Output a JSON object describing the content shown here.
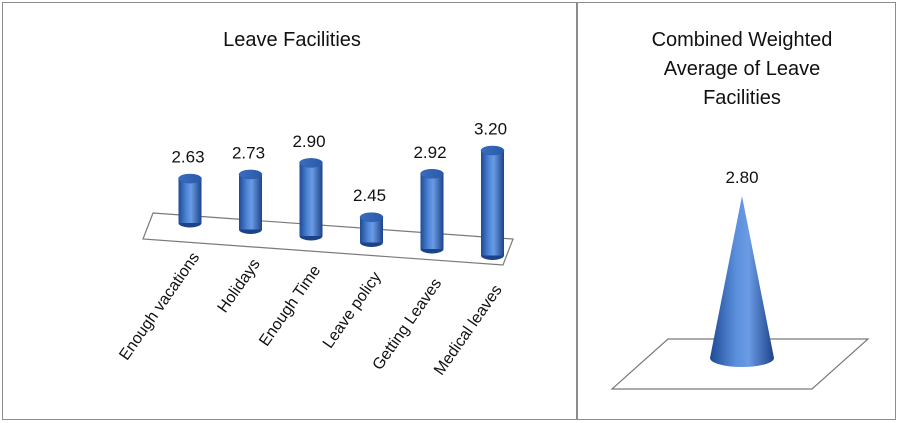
{
  "chart_data": [
    {
      "type": "bar",
      "title": "Leave Facilities",
      "categories": [
        "Enough vacations",
        "Holidays",
        "Enough Time",
        "Leave policy",
        "Getting Leaves",
        "Medical leaves"
      ],
      "values": [
        2.63,
        2.73,
        2.9,
        2.45,
        2.92,
        3.2
      ],
      "value_labels": [
        "2.63",
        "2.73",
        "2.90",
        "2.45",
        "2.92",
        "3.20"
      ],
      "style": "3d-cylinder",
      "color": "#3a6fc4",
      "grid": false,
      "legend": "none"
    },
    {
      "type": "bar",
      "title_lines": [
        "Combined Weighted",
        "Average of Leave",
        "Facilities"
      ],
      "categories": [
        ""
      ],
      "values": [
        2.8
      ],
      "value_labels": [
        "2.80"
      ],
      "style": "3d-cone",
      "color": "#3a6fc4",
      "grid": false,
      "legend": "none"
    }
  ]
}
